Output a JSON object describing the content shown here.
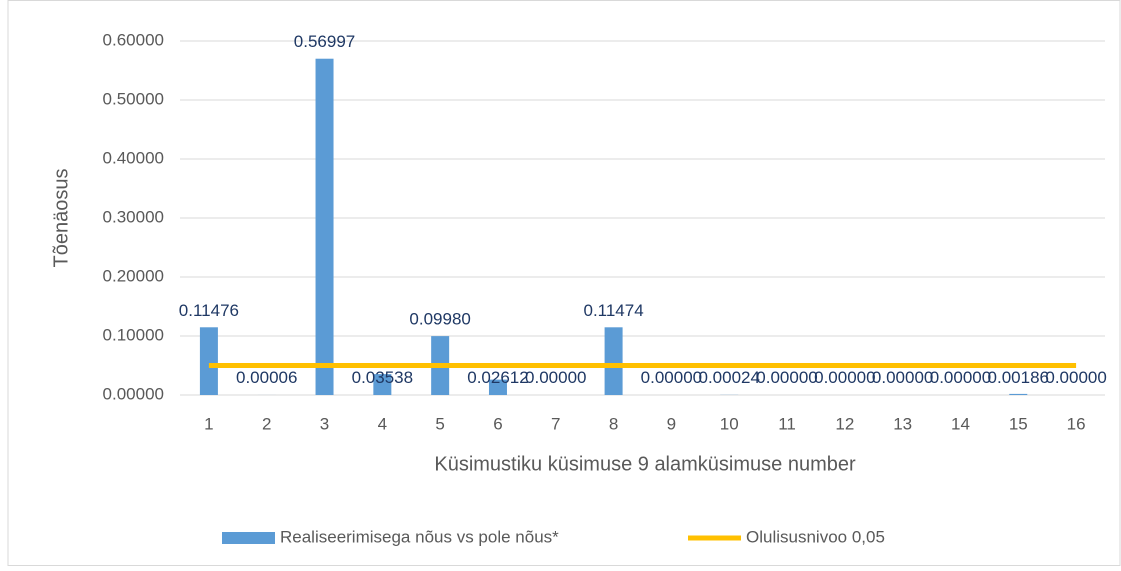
{
  "chart_data": {
    "type": "bar",
    "x_label": "Küsimustiku küsimuse 9 alamküsimuse number",
    "y_label": "Tõenäosus",
    "categories": [
      "1",
      "2",
      "3",
      "4",
      "5",
      "6",
      "7",
      "8",
      "9",
      "10",
      "11",
      "12",
      "13",
      "14",
      "15",
      "16"
    ],
    "series": [
      {
        "name": "Realiseerimisega nõus vs pole nõus*",
        "type": "bar",
        "color": "#5b9bd5",
        "values": [
          0.11476,
          6e-05,
          0.56997,
          0.03538,
          0.0998,
          0.02612,
          0,
          0.11474,
          0,
          0.00024,
          0,
          0,
          0,
          0,
          0.00186,
          0
        ],
        "value_labels": [
          "0.11476",
          "0.00006",
          "0.56997",
          "0.03538",
          "0.09980",
          "0.02612",
          "0.00000",
          "0.11474",
          "0.00000",
          "0.00024",
          "0.00000",
          "0.00000",
          "0.00000",
          "0.00000",
          "0.00186",
          "0.00000"
        ],
        "label_color": "#1f3864"
      },
      {
        "name": "Olulisusnivoo 0,05",
        "type": "line",
        "color": "#ffc000",
        "values": [
          0.05,
          0.05,
          0.05,
          0.05,
          0.05,
          0.05,
          0.05,
          0.05,
          0.05,
          0.05,
          0.05,
          0.05,
          0.05,
          0.05,
          0.05,
          0.05
        ]
      }
    ],
    "ylim": [
      0,
      0.6
    ],
    "yticks": [
      {
        "value": 0,
        "label": "0.00000"
      },
      {
        "value": 0.1,
        "label": "0.10000"
      },
      {
        "value": 0.2,
        "label": "0.20000"
      },
      {
        "value": 0.3,
        "label": "0.30000"
      },
      {
        "value": 0.4,
        "label": "0.40000"
      },
      {
        "value": 0.5,
        "label": "0.50000"
      },
      {
        "value": 0.6,
        "label": "0.60000"
      }
    ],
    "grid": true,
    "legend": "bottom"
  }
}
